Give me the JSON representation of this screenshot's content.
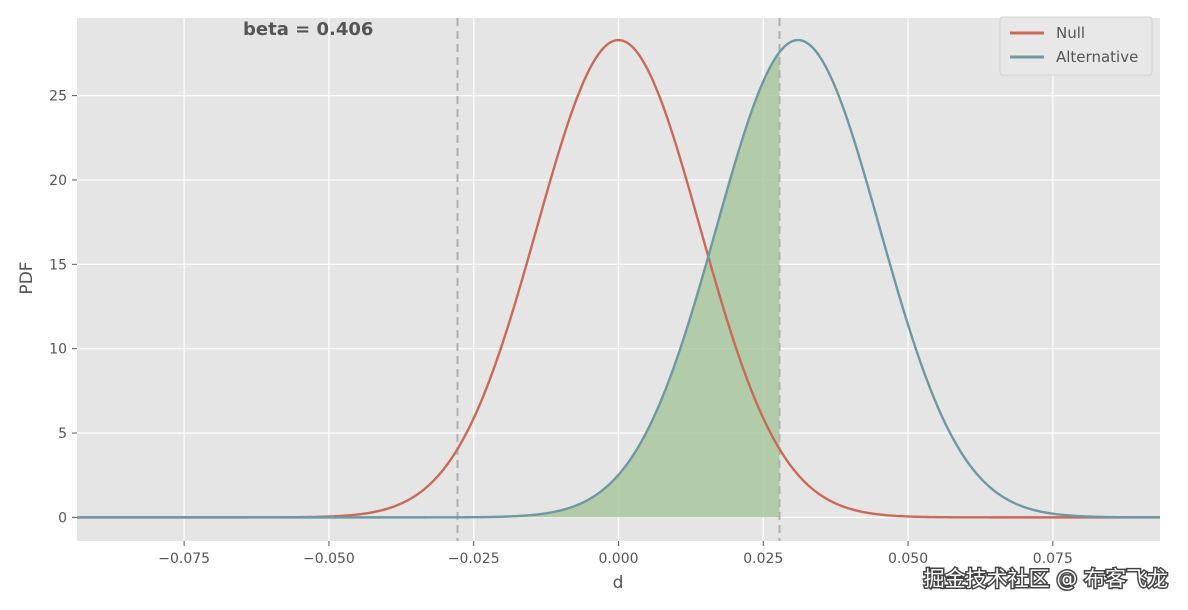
{
  "chart_data": {
    "type": "line",
    "title": "",
    "xlabel": "d",
    "ylabel": "PDF",
    "xlim": [
      -0.0935,
      0.0935
    ],
    "ylim": [
      -1.4,
      29.6
    ],
    "xticks": [
      -0.075,
      -0.05,
      -0.025,
      0.0,
      0.025,
      0.05,
      0.075
    ],
    "xtick_labels": [
      "−0.075",
      "−0.050",
      "−0.025",
      "0.000",
      "0.025",
      "0.050",
      "0.075"
    ],
    "yticks": [
      0,
      5,
      10,
      15,
      20,
      25
    ],
    "ytick_labels": [
      "0",
      "5",
      "10",
      "15",
      "20",
      "25"
    ],
    "grid": true,
    "legend_position": "top-right",
    "series": [
      {
        "name": "Null",
        "distribution": "normal",
        "mean": 0.0,
        "sd": 0.0141,
        "color": "#c96a58"
      },
      {
        "name": "Alternative",
        "distribution": "normal",
        "mean": 0.031,
        "sd": 0.0141,
        "color": "#6f98a4"
      }
    ],
    "critical_values": [
      -0.0278,
      0.0278
    ],
    "shaded_region": {
      "series": "Alternative",
      "from": -0.0935,
      "to": 0.0278,
      "color": "#a9c8a0"
    },
    "annotation": "beta = 0.406"
  },
  "watermark": "掘金技术社区 @ 布客飞龙",
  "colors": {
    "panel": "#e5e5e5",
    "grid": "#ffffff",
    "tick": "#555555",
    "critical_line": "#b0b0b0"
  }
}
